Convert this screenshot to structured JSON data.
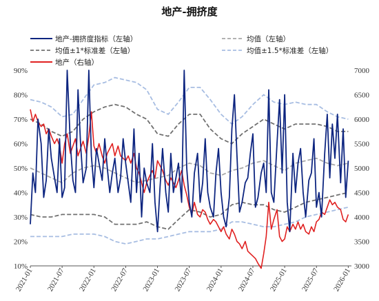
{
  "chart_data": {
    "type": "line",
    "title": "地产-拥挤度",
    "x_ticks": [
      "2021-01",
      "2021-07",
      "2022-01",
      "2022-07",
      "2023-01",
      "2023-07",
      "2024-01",
      "2024-07",
      "2025-01",
      "2025-07",
      "2026-01"
    ],
    "y_left": {
      "ticks": [
        "10%",
        "20%",
        "30%",
        "40%",
        "50%",
        "60%",
        "70%",
        "80%",
        "90%"
      ],
      "range": [
        10,
        90
      ]
    },
    "y_right": {
      "ticks": [
        "3000",
        "3500",
        "4000",
        "4500",
        "5000",
        "5500",
        "6000",
        "6500",
        "7000"
      ],
      "range": [
        3000,
        7000
      ]
    },
    "legend": {
      "crowding": "地产-拥挤度指标（左轴）",
      "mean": "均值（左轴）",
      "band1": "均值±1*标准差（左轴）",
      "band15": "均值±1.5*标准差（左轴）",
      "index": "地产（右轴）"
    },
    "colors": {
      "crowding": "#0d2580",
      "index": "#e02020",
      "band1": "#707070",
      "mean": "#a8a8a8",
      "band15": "#a7bde2"
    },
    "series": {
      "crowding": {
        "axis": "left",
        "x": [
          2021.0,
          2021.04,
          2021.08,
          2021.12,
          2021.17,
          2021.21,
          2021.25,
          2021.29,
          2021.33,
          2021.38,
          2021.42,
          2021.46,
          2021.5,
          2021.54,
          2021.58,
          2021.63,
          2021.67,
          2021.71,
          2021.75,
          2021.79,
          2021.83,
          2021.88,
          2021.92,
          2021.96,
          2022.0,
          2022.04,
          2022.08,
          2022.13,
          2022.17,
          2022.21,
          2022.25,
          2022.29,
          2022.33,
          2022.38,
          2022.42,
          2022.46,
          2022.5,
          2022.54,
          2022.58,
          2022.63,
          2022.67,
          2022.71,
          2022.75,
          2022.79,
          2022.83,
          2022.88,
          2022.92,
          2022.96,
          2023.0,
          2023.04,
          2023.08,
          2023.13,
          2023.17,
          2023.21,
          2023.25,
          2023.29,
          2023.33,
          2023.38,
          2023.42,
          2023.46,
          2023.5,
          2023.54,
          2023.58,
          2023.63,
          2023.67,
          2023.71,
          2023.75,
          2023.79,
          2023.83,
          2023.88,
          2023.92,
          2023.96,
          2024.0,
          2024.04,
          2024.08,
          2024.13,
          2024.17,
          2024.21,
          2024.25,
          2024.29,
          2024.33,
          2024.38,
          2024.42,
          2024.46,
          2024.5,
          2024.54,
          2024.58,
          2024.63,
          2024.67,
          2024.71,
          2024.75,
          2024.79,
          2024.83,
          2024.88,
          2024.92,
          2024.96,
          2025.0,
          2025.04,
          2025.08,
          2025.13,
          2025.17,
          2025.21,
          2025.25,
          2025.29,
          2025.33,
          2025.38,
          2025.42,
          2025.46,
          2025.5,
          2025.54,
          2025.58,
          2025.63,
          2025.67,
          2025.71,
          2025.75,
          2025.79,
          2025.83,
          2025.88,
          2025.92,
          2025.96,
          2026.0
        ],
        "y": [
          27,
          48,
          40,
          70,
          60,
          38,
          45,
          66,
          54,
          46,
          40,
          62,
          38,
          42,
          90,
          60,
          45,
          40,
          82,
          60,
          44,
          50,
          90,
          55,
          42,
          58,
          52,
          45,
          62,
          50,
          40,
          48,
          54,
          40,
          46,
          62,
          52,
          44,
          36,
          66,
          40,
          56,
          30,
          50,
          44,
          40,
          60,
          36,
          24,
          42,
          58,
          40,
          32,
          56,
          40,
          46,
          52,
          36,
          90,
          50,
          36,
          30,
          48,
          56,
          36,
          44,
          62,
          40,
          34,
          30,
          48,
          58,
          40,
          30,
          26,
          38,
          66,
          80,
          55,
          32,
          36,
          44,
          46,
          56,
          64,
          34,
          38,
          48,
          52,
          40,
          82,
          40,
          36,
          60,
          78,
          48,
          80,
          36,
          24,
          56,
          40,
          52,
          58,
          40,
          30,
          45,
          48,
          62,
          34,
          40,
          30,
          56,
          72,
          46,
          68,
          54,
          72,
          44,
          66,
          38,
          53
        ]
      },
      "index": {
        "axis": "right",
        "x": [
          2021.0,
          2021.04,
          2021.08,
          2021.12,
          2021.17,
          2021.21,
          2021.25,
          2021.29,
          2021.33,
          2021.38,
          2021.42,
          2021.46,
          2021.5,
          2021.54,
          2021.58,
          2021.63,
          2021.67,
          2021.71,
          2021.75,
          2021.79,
          2021.83,
          2021.88,
          2021.92,
          2021.96,
          2022.0,
          2022.04,
          2022.08,
          2022.13,
          2022.17,
          2022.21,
          2022.25,
          2022.29,
          2022.33,
          2022.38,
          2022.42,
          2022.46,
          2022.5,
          2022.54,
          2022.58,
          2022.63,
          2022.67,
          2022.71,
          2022.75,
          2022.79,
          2022.83,
          2022.88,
          2022.92,
          2022.96,
          2023.0,
          2023.04,
          2023.08,
          2023.13,
          2023.17,
          2023.21,
          2023.25,
          2023.29,
          2023.33,
          2023.38,
          2023.42,
          2023.46,
          2023.5,
          2023.54,
          2023.58,
          2023.63,
          2023.67,
          2023.71,
          2023.75,
          2023.79,
          2023.83,
          2023.88,
          2023.92,
          2023.96,
          2024.0,
          2024.04,
          2024.08,
          2024.13,
          2024.17,
          2024.21,
          2024.25,
          2024.29,
          2024.33,
          2024.38,
          2024.42,
          2024.46,
          2024.5,
          2024.54,
          2024.58,
          2024.63,
          2024.67,
          2024.71,
          2024.75,
          2024.79,
          2024.83,
          2024.88,
          2024.92,
          2024.96,
          2025.0,
          2025.04,
          2025.08,
          2025.13,
          2025.17,
          2025.21,
          2025.25,
          2025.29,
          2025.33,
          2025.38,
          2025.42,
          2025.46,
          2025.5,
          2025.54,
          2025.58,
          2025.63,
          2025.67,
          2025.71,
          2025.75,
          2025.79,
          2025.83,
          2025.88,
          2025.92,
          2025.96,
          2026.0
        ],
        "y": [
          6200,
          5950,
          6100,
          5950,
          5850,
          5900,
          5700,
          5800,
          5650,
          5500,
          5600,
          5450,
          5100,
          5500,
          5700,
          5300,
          5450,
          5600,
          5250,
          5400,
          5550,
          5300,
          5650,
          6150,
          5450,
          5300,
          5500,
          5250,
          5100,
          5300,
          5400,
          5500,
          5250,
          5450,
          5250,
          5200,
          5150,
          5250,
          5100,
          5300,
          5000,
          4900,
          4700,
          4500,
          4700,
          4850,
          4950,
          4800,
          5150,
          5050,
          4950,
          4750,
          4650,
          4800,
          4700,
          4600,
          4750,
          4950,
          4650,
          4450,
          4200,
          4050,
          4300,
          4050,
          4000,
          4150,
          4100,
          3950,
          3850,
          3950,
          3900,
          3800,
          3700,
          3800,
          3650,
          3550,
          3750,
          3650,
          3500,
          3450,
          3350,
          3500,
          3300,
          3250,
          3200,
          3150,
          3050,
          2950,
          3250,
          3600,
          4300,
          3750,
          3950,
          4150,
          3600,
          3500,
          3550,
          3800,
          3700,
          3850,
          3750,
          3900,
          3750,
          3850,
          3700,
          3650,
          3800,
          3700,
          3900,
          3950,
          4100,
          4050,
          4200,
          4350,
          4250,
          4300,
          4200,
          4150,
          3950,
          3900,
          4050
        ]
      },
      "mean": {
        "axis": "left",
        "x": [
          2021.0,
          2021.17,
          2021.33,
          2021.5,
          2021.67,
          2021.83,
          2022.0,
          2022.17,
          2022.33,
          2022.5,
          2022.67,
          2022.83,
          2023.0,
          2023.17,
          2023.33,
          2023.5,
          2023.67,
          2023.83,
          2024.0,
          2024.17,
          2024.33,
          2024.5,
          2024.67,
          2024.83,
          2025.0,
          2025.17,
          2025.33,
          2025.5,
          2025.67,
          2025.83,
          2026.0
        ],
        "y": [
          50,
          48,
          46,
          44,
          48,
          50,
          51,
          50,
          48,
          46,
          44,
          45,
          46,
          47,
          50,
          52,
          51,
          48,
          47,
          49,
          50,
          52,
          53,
          51,
          49,
          52,
          53,
          54,
          52,
          51,
          52
        ]
      },
      "upper1": {
        "axis": "left",
        "x": [
          2021.0,
          2021.17,
          2021.33,
          2021.5,
          2021.67,
          2021.83,
          2022.0,
          2022.17,
          2022.33,
          2022.5,
          2022.67,
          2022.83,
          2023.0,
          2023.17,
          2023.33,
          2023.5,
          2023.67,
          2023.83,
          2024.0,
          2024.17,
          2024.33,
          2024.5,
          2024.67,
          2024.83,
          2025.0,
          2025.17,
          2025.33,
          2025.5,
          2025.67,
          2025.83,
          2026.0
        ],
        "y": [
          70,
          68,
          65,
          63,
          65,
          70,
          73,
          75,
          76,
          75,
          72,
          70,
          64,
          63,
          68,
          72,
          72,
          66,
          62,
          60,
          64,
          67,
          70,
          68,
          66,
          68,
          68,
          68,
          67,
          65,
          65
        ]
      },
      "lower1": {
        "axis": "left",
        "x": [
          2021.0,
          2021.17,
          2021.33,
          2021.5,
          2021.67,
          2021.83,
          2022.0,
          2022.17,
          2022.33,
          2022.5,
          2022.67,
          2022.83,
          2023.0,
          2023.17,
          2023.33,
          2023.5,
          2023.67,
          2023.83,
          2024.0,
          2024.17,
          2024.33,
          2024.5,
          2024.67,
          2024.83,
          2025.0,
          2025.17,
          2025.33,
          2025.5,
          2025.67,
          2025.83,
          2026.0
        ],
        "y": [
          31,
          30,
          30,
          31,
          31,
          31,
          31,
          30,
          27,
          27,
          27,
          28,
          26,
          25,
          29,
          33,
          32,
          30,
          31,
          35,
          36,
          35,
          35,
          33,
          32,
          34,
          36,
          37,
          38,
          39,
          40
        ]
      },
      "upper15": {
        "axis": "left",
        "x": [
          2021.0,
          2021.17,
          2021.33,
          2021.5,
          2021.67,
          2021.83,
          2022.0,
          2022.17,
          2022.33,
          2022.5,
          2022.67,
          2022.83,
          2023.0,
          2023.17,
          2023.33,
          2023.5,
          2023.67,
          2023.83,
          2024.0,
          2024.17,
          2024.33,
          2024.5,
          2024.67,
          2024.83,
          2025.0,
          2025.17,
          2025.33,
          2025.5,
          2025.67,
          2025.83,
          2026.0
        ],
        "y": [
          78,
          77,
          75,
          71,
          72,
          78,
          84,
          85,
          87,
          86,
          85,
          82,
          74,
          72,
          77,
          83,
          83,
          78,
          72,
          68,
          71,
          76,
          80,
          77,
          76,
          77,
          76,
          76,
          73,
          71,
          70
        ]
      },
      "lower15": {
        "axis": "left",
        "x": [
          2021.0,
          2021.17,
          2021.33,
          2021.5,
          2021.67,
          2021.83,
          2022.0,
          2022.17,
          2022.33,
          2022.5,
          2022.67,
          2022.83,
          2023.0,
          2023.17,
          2023.33,
          2023.5,
          2023.67,
          2023.83,
          2024.0,
          2024.17,
          2024.33,
          2024.5,
          2024.67,
          2024.83,
          2025.0,
          2025.17,
          2025.33,
          2025.5,
          2025.67,
          2025.83,
          2026.0
        ],
        "y": [
          22,
          22,
          22,
          22,
          23,
          23,
          23,
          22,
          20,
          19,
          20,
          21,
          21,
          22,
          23,
          24,
          24,
          24,
          25,
          28,
          28,
          27,
          26,
          26,
          27,
          28,
          30,
          31,
          32,
          33,
          34
        ]
      }
    },
    "x_range": [
      2021.0,
      2026.05
    ]
  }
}
